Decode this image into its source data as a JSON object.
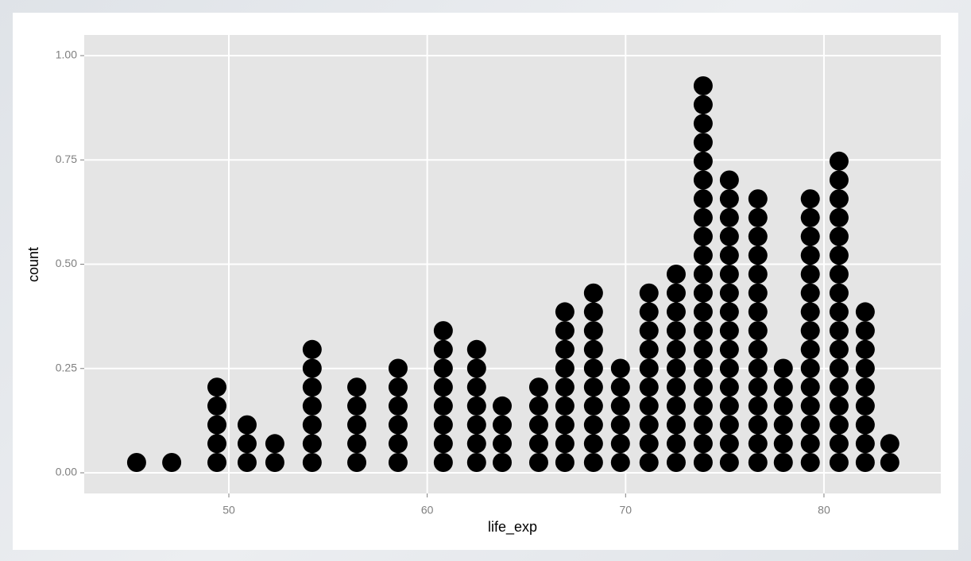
{
  "chart_data": {
    "type": "dotplot",
    "x_label": "life_exp",
    "y_label": "count",
    "x": [
      45.35,
      47.12,
      49.4,
      50.92,
      52.32,
      54.2,
      56.45,
      58.53,
      60.81,
      62.49,
      63.78,
      65.62,
      66.94,
      68.38,
      69.74,
      71.18,
      72.55,
      73.91,
      75.23,
      76.67,
      77.95,
      79.31,
      80.76,
      82.08,
      83.32
    ],
    "values": [
      1,
      1,
      5,
      3,
      2,
      7,
      5,
      6,
      8,
      7,
      4,
      5,
      9,
      10,
      6,
      10,
      11,
      21,
      16,
      15,
      6,
      15,
      17,
      9,
      2
    ],
    "color": "#000000",
    "xlim": [
      42.71,
      85.89
    ],
    "xticks": [
      50,
      60,
      70,
      80
    ],
    "ylim": [
      -0.0495,
      1.0495
    ],
    "yticks": [
      {
        "value": 0,
        "label": "0.00"
      },
      {
        "value": 0.25,
        "label": "0.25"
      },
      {
        "value": 0.5,
        "label": "0.50"
      },
      {
        "value": 0.75,
        "label": "0.75"
      },
      {
        "value": 1,
        "label": "1.00"
      }
    ],
    "grid": true
  }
}
